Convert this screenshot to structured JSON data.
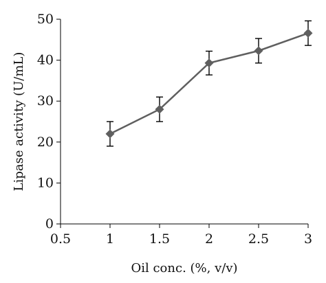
{
  "chart_data": {
    "type": "line",
    "xlabel": "Oil conc. (%, v/v)",
    "ylabel": "Lipase activity (U/mL)",
    "xlim": [
      0.5,
      3
    ],
    "ylim": [
      0,
      50
    ],
    "xticks": [
      0.5,
      1,
      1.5,
      2,
      2.5,
      3
    ],
    "yticks": [
      0,
      10,
      20,
      30,
      40,
      50
    ],
    "xtick_labels": [
      "0.5",
      "1",
      "1.5",
      "2",
      "2.5",
      "3"
    ],
    "ytick_labels": [
      "0",
      "10",
      "20",
      "30",
      "40",
      "50"
    ],
    "grid": false,
    "series": [
      {
        "x": [
          1,
          1.5,
          2,
          2.5,
          3
        ],
        "values": [
          22,
          28,
          39.3,
          42.3,
          46.6
        ],
        "error": [
          3,
          3,
          2.9,
          3,
          3
        ],
        "marker": "diamond",
        "color": "#5f5f5f"
      }
    ]
  }
}
